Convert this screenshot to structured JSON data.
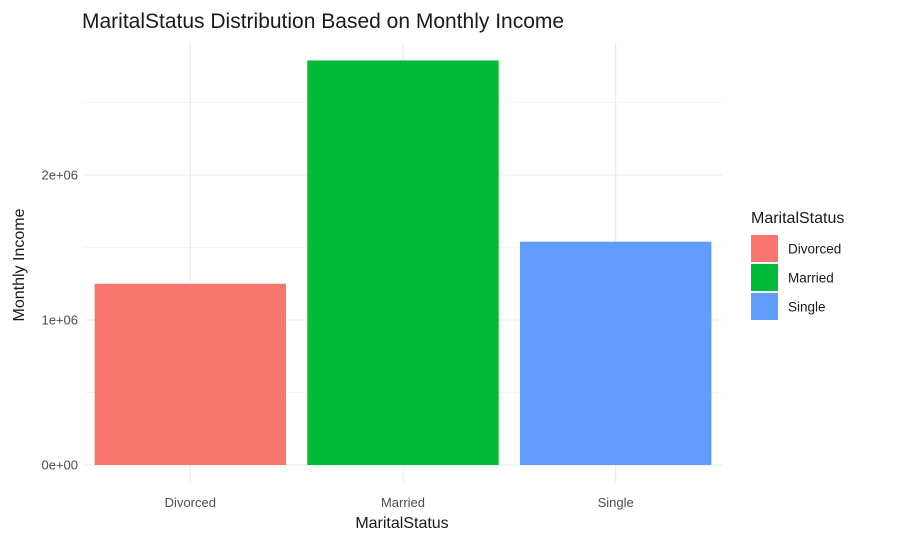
{
  "chart_data": {
    "type": "bar",
    "title": "MaritalStatus Distribution Based on Monthly Income",
    "xlabel": "MaritalStatus",
    "ylabel": "Monthly Income",
    "categories": [
      "Divorced",
      "Married",
      "Single"
    ],
    "values": [
      1250000,
      2790000,
      1540000
    ],
    "colors": [
      "#F8766D",
      "#00BA38",
      "#619CFF"
    ],
    "ylim": [
      0,
      2900000
    ],
    "y_ticks": [
      0,
      1000000,
      2000000
    ],
    "y_tick_labels": [
      "0e+00",
      "1e+06",
      "2e+06"
    ],
    "grid": true,
    "legend": {
      "title": "MaritalStatus",
      "position": "right",
      "entries": [
        "Divorced",
        "Married",
        "Single"
      ]
    }
  }
}
